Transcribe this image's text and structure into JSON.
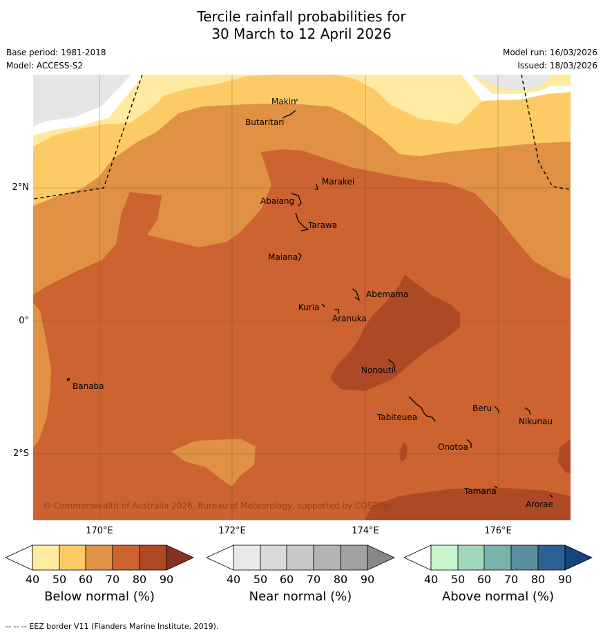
{
  "header": {
    "title_line1": "Tercile rainfall probabilities for",
    "title_line2": "30 March to 12 April 2026",
    "base_period": "Base period: 1981-2018",
    "model": "Model: ACCESS-S2",
    "model_run": "Model run: 16/03/2026",
    "issued": "Issued: 18/03/2026"
  },
  "map": {
    "lon_labels": [
      "170°E",
      "172°E",
      "174°E",
      "176°E"
    ],
    "lat_labels": [
      "2°N",
      "0°",
      "2°S"
    ],
    "places": [
      "Makin",
      "Butaritari",
      "Marakei",
      "Abaiang",
      "Tarawa",
      "Maiana",
      "Abemama",
      "Kuria",
      "Aranuka",
      "Nonouti",
      "Banaba",
      "Beru",
      "Nikunau",
      "Tabiteuea",
      "Onotoa",
      "Tamana",
      "Arorae"
    ],
    "copyright": "© Commonwealth of Australia 2026, Bureau of Meteorology, supported by COSPPac"
  },
  "legend": {
    "below": {
      "title": "Below normal (%)",
      "ticks": [
        "40",
        "50",
        "60",
        "70",
        "80",
        "90"
      ],
      "colors": [
        "#ffffff",
        "#feeaa0",
        "#fdcb65",
        "#e09144",
        "#cc6330",
        "#ae4926",
        "#8a3220"
      ]
    },
    "near": {
      "title": "Near normal (%)",
      "ticks": [
        "40",
        "50",
        "60",
        "70",
        "80",
        "90"
      ],
      "colors": [
        "#ffffff",
        "#e8e8e8",
        "#d9d9d9",
        "#c8c8c8",
        "#b4b4b4",
        "#a0a0a0",
        "#888888"
      ]
    },
    "above": {
      "title": "Above normal (%)",
      "ticks": [
        "40",
        "50",
        "60",
        "70",
        "80",
        "90"
      ],
      "colors": [
        "#ffffff",
        "#c8f5cc",
        "#a1d6bb",
        "#7ab3ae",
        "#5a8f9f",
        "#2d6196",
        "#16447f"
      ]
    }
  },
  "footer": "--  --  -- EEZ border V11 (Flanders Marine Institute, 2019)."
}
